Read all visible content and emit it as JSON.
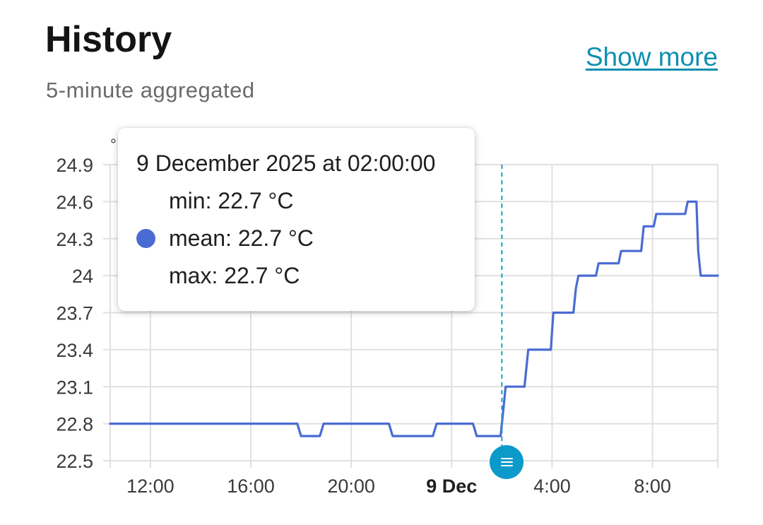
{
  "header": {
    "title": "History",
    "subtitle": "5-minute aggregated",
    "show_more": "Show more"
  },
  "tooltip": {
    "header": "9 December 2025 at 02:00:00",
    "rows": [
      {
        "label": "min",
        "value": "22.7 °C",
        "dot": false
      },
      {
        "label": "mean",
        "value": "22.7 °C",
        "dot": true
      },
      {
        "label": "max",
        "value": "22.7 °C",
        "dot": false
      }
    ]
  },
  "colors": {
    "series": "#4a6bd3",
    "crosshair": "#1a9ec4",
    "grid": "#e0e0e0",
    "marker": "#0b9ac9",
    "link": "#0d8fb0"
  },
  "chart_data": {
    "type": "line",
    "unit": "°",
    "ylim": [
      22.5,
      24.9
    ],
    "yticks": [
      22.5,
      22.8,
      23.1,
      23.4,
      23.7,
      24.0,
      24.3,
      24.6,
      24.9
    ],
    "ytick_labels": [
      "22.5",
      "22.8",
      "23.1",
      "23.4",
      "23.7",
      "24",
      "24.3",
      "24.6",
      "24.9"
    ],
    "xlim": [
      10.4,
      34.6
    ],
    "xticks": [
      {
        "x": 12,
        "label": "12:00",
        "bold": false
      },
      {
        "x": 16,
        "label": "16:00",
        "bold": false
      },
      {
        "x": 20,
        "label": "20:00",
        "bold": false
      },
      {
        "x": 24,
        "label": "9 Dec",
        "bold": true
      },
      {
        "x": 28,
        "label": "4:00",
        "bold": false
      },
      {
        "x": 32,
        "label": "8:00",
        "bold": false
      }
    ],
    "crosshair_x": 26.0,
    "grid": true,
    "series": [
      {
        "points": [
          [
            10.4,
            22.8
          ],
          [
            17.85,
            22.8
          ],
          [
            18.0,
            22.7
          ],
          [
            18.75,
            22.7
          ],
          [
            18.9,
            22.8
          ],
          [
            21.5,
            22.8
          ],
          [
            21.65,
            22.7
          ],
          [
            23.25,
            22.7
          ],
          [
            23.4,
            22.8
          ],
          [
            24.85,
            22.8
          ],
          [
            25.0,
            22.7
          ],
          [
            25.95,
            22.7
          ],
          [
            26.05,
            22.9
          ],
          [
            26.15,
            23.1
          ],
          [
            26.9,
            23.1
          ],
          [
            27.05,
            23.4
          ],
          [
            27.95,
            23.4
          ],
          [
            28.05,
            23.7
          ],
          [
            28.85,
            23.7
          ],
          [
            28.95,
            23.9
          ],
          [
            29.05,
            24.0
          ],
          [
            29.75,
            24.0
          ],
          [
            29.85,
            24.1
          ],
          [
            30.65,
            24.1
          ],
          [
            30.75,
            24.2
          ],
          [
            31.55,
            24.2
          ],
          [
            31.65,
            24.4
          ],
          [
            32.05,
            24.4
          ],
          [
            32.15,
            24.5
          ],
          [
            33.3,
            24.5
          ],
          [
            33.4,
            24.6
          ],
          [
            33.75,
            24.6
          ],
          [
            33.82,
            24.2
          ],
          [
            33.92,
            24.0
          ],
          [
            34.6,
            24.0
          ]
        ]
      }
    ]
  }
}
